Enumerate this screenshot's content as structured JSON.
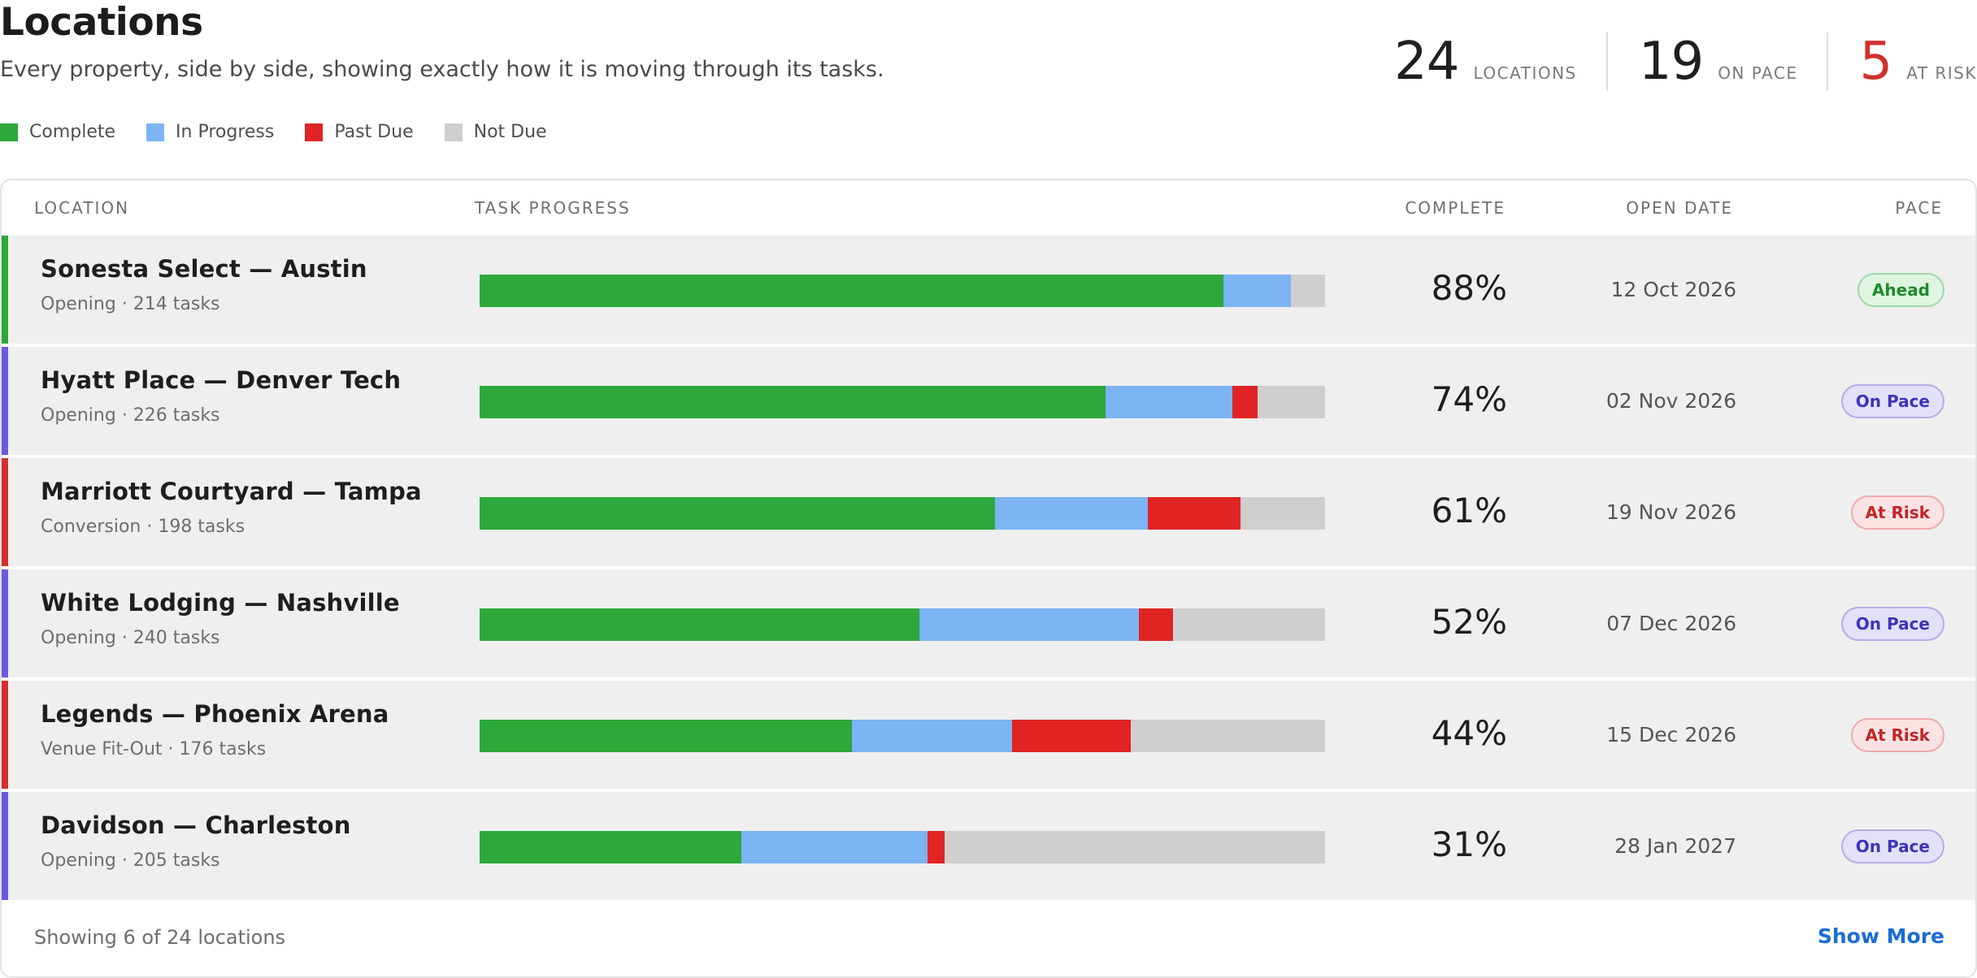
{
  "header": {
    "title": "Locations",
    "subtitle": "Every property, side by side, showing exactly how it is moving through its tasks."
  },
  "stats": [
    {
      "value": "24",
      "label": "LOCATIONS"
    },
    {
      "value": "19",
      "label": "ON PACE"
    },
    {
      "value": "5",
      "label": "AT RISK"
    }
  ],
  "legend": [
    {
      "label": "Complete",
      "color": "#2da83a"
    },
    {
      "label": "In Progress",
      "color": "#7cb4f4"
    },
    {
      "label": "Past Due",
      "color": "#e02424"
    },
    {
      "label": "Not Due",
      "color": "#cfcfcf"
    }
  ],
  "table": {
    "columns": {
      "location": "LOCATION",
      "progress": "TASK PROGRESS",
      "complete": "COMPLETE",
      "open_date": "OPEN DATE",
      "pace": "PACE"
    },
    "rows": [
      {
        "name": "Sonesta Select — Austin",
        "meta": "Opening · 214 tasks",
        "complete_pct": "88%",
        "open_date": "12 Oct 2026",
        "pace": "Ahead",
        "pace_type": "ahead",
        "accent": "#2da83a",
        "progress": {
          "complete": 88,
          "in_progress": 8,
          "past_due": 0,
          "not_due": 4
        }
      },
      {
        "name": "Hyatt Place — Denver Tech",
        "meta": "Opening · 226 tasks",
        "complete_pct": "74%",
        "open_date": "02 Nov 2026",
        "pace": "On Pace",
        "pace_type": "onpace",
        "accent": "#6a5ae0",
        "progress": {
          "complete": 74,
          "in_progress": 15,
          "past_due": 3,
          "not_due": 8
        }
      },
      {
        "name": "Marriott Courtyard — Tampa",
        "meta": "Conversion · 198 tasks",
        "complete_pct": "61%",
        "open_date": "19 Nov 2026",
        "pace": "At Risk",
        "pace_type": "atrisk",
        "accent": "#d2302f",
        "progress": {
          "complete": 61,
          "in_progress": 18,
          "past_due": 11,
          "not_due": 10
        }
      },
      {
        "name": "White Lodging — Nashville",
        "meta": "Opening · 240 tasks",
        "complete_pct": "52%",
        "open_date": "07 Dec 2026",
        "pace": "On Pace",
        "pace_type": "onpace",
        "accent": "#6a5ae0",
        "progress": {
          "complete": 52,
          "in_progress": 26,
          "past_due": 4,
          "not_due": 18
        }
      },
      {
        "name": "Legends — Phoenix Arena",
        "meta": "Venue Fit-Out · 176 tasks",
        "complete_pct": "44%",
        "open_date": "15 Dec 2026",
        "pace": "At Risk",
        "pace_type": "atrisk",
        "accent": "#d2302f",
        "progress": {
          "complete": 44,
          "in_progress": 19,
          "past_due": 14,
          "not_due": 23
        }
      },
      {
        "name": "Davidson — Charleston",
        "meta": "Opening · 205 tasks",
        "complete_pct": "31%",
        "open_date": "28 Jan 2027",
        "pace": "On Pace",
        "pace_type": "onpace",
        "accent": "#6a5ae0",
        "progress": {
          "complete": 31,
          "in_progress": 22,
          "past_due": 2,
          "not_due": 45
        }
      }
    ]
  },
  "footer": {
    "showing": "Showing 6 of 24 locations",
    "show_more": "Show More"
  },
  "colors": {
    "complete": "#2da83a",
    "in_progress": "#7cb4f4",
    "past_due": "#e02424",
    "not_due": "#cfcfcf",
    "link": "#1a6cd6"
  }
}
